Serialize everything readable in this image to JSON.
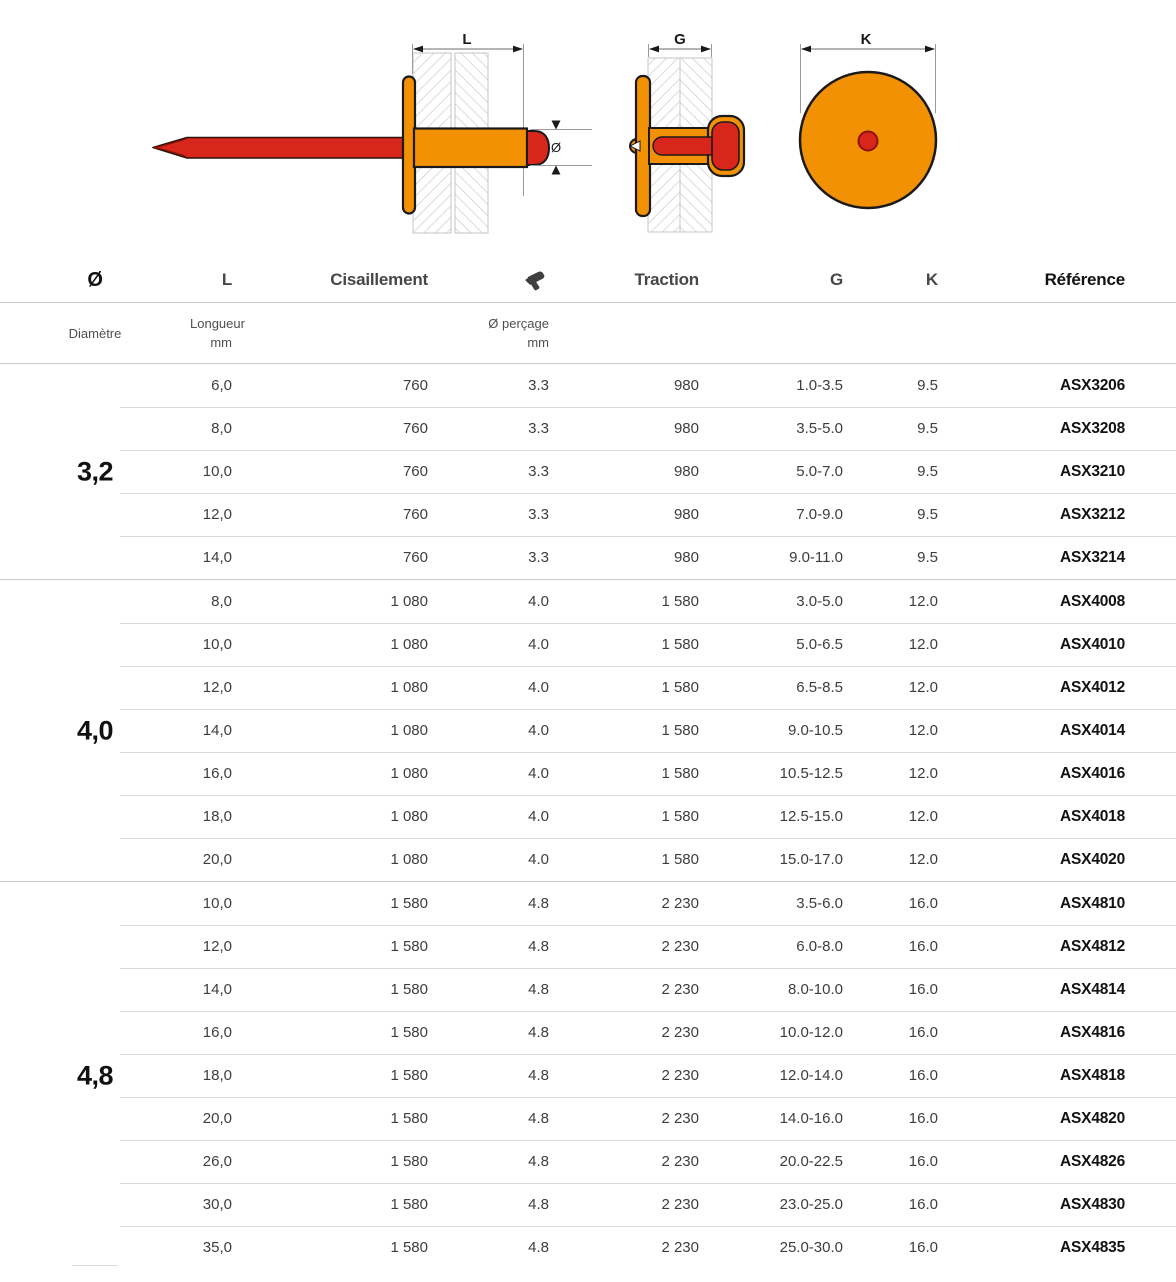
{
  "diagram": {
    "dim_labels": {
      "length": "L",
      "grip": "G",
      "head": "K",
      "diameter": "Ø"
    },
    "colors": {
      "body_orange": "#F29104",
      "mandrel_red": "#D9261C",
      "outline_black": "#1A1A1A",
      "hatch_gray": "#CCD0D4",
      "dimension_gray": "#9B9B9B"
    }
  },
  "table": {
    "headers": {
      "diameter": "Ø",
      "length": "L",
      "shear": "Cisaillement",
      "drill_icon": "drill-icon",
      "traction": "Traction",
      "grip": "G",
      "head": "K",
      "reference": "Référence"
    },
    "subheaders": {
      "diameter": "Diamètre",
      "length_line1": "Longueur",
      "length_line2": "mm",
      "drill_line1": "Ø perçage",
      "drill_line2": "mm"
    },
    "groups": [
      {
        "diameter": "3,2",
        "rows": [
          {
            "length": "6,0",
            "shear": "760",
            "drill": "3.3",
            "traction": "980",
            "grip": "1.0-3.5",
            "head": "9.5",
            "reference": "ASX3206"
          },
          {
            "length": "8,0",
            "shear": "760",
            "drill": "3.3",
            "traction": "980",
            "grip": "3.5-5.0",
            "head": "9.5",
            "reference": "ASX3208"
          },
          {
            "length": "10,0",
            "shear": "760",
            "drill": "3.3",
            "traction": "980",
            "grip": "5.0-7.0",
            "head": "9.5",
            "reference": "ASX3210"
          },
          {
            "length": "12,0",
            "shear": "760",
            "drill": "3.3",
            "traction": "980",
            "grip": "7.0-9.0",
            "head": "9.5",
            "reference": "ASX3212"
          },
          {
            "length": "14,0",
            "shear": "760",
            "drill": "3.3",
            "traction": "980",
            "grip": "9.0-11.0",
            "head": "9.5",
            "reference": "ASX3214"
          }
        ]
      },
      {
        "diameter": "4,0",
        "rows": [
          {
            "length": "8,0",
            "shear": "1 080",
            "drill": "4.0",
            "traction": "1 580",
            "grip": "3.0-5.0",
            "head": "12.0",
            "reference": "ASX4008"
          },
          {
            "length": "10,0",
            "shear": "1 080",
            "drill": "4.0",
            "traction": "1 580",
            "grip": "5.0-6.5",
            "head": "12.0",
            "reference": "ASX4010"
          },
          {
            "length": "12,0",
            "shear": "1 080",
            "drill": "4.0",
            "traction": "1 580",
            "grip": "6.5-8.5",
            "head": "12.0",
            "reference": "ASX4012"
          },
          {
            "length": "14,0",
            "shear": "1 080",
            "drill": "4.0",
            "traction": "1 580",
            "grip": "9.0-10.5",
            "head": "12.0",
            "reference": "ASX4014"
          },
          {
            "length": "16,0",
            "shear": "1 080",
            "drill": "4.0",
            "traction": "1 580",
            "grip": "10.5-12.5",
            "head": "12.0",
            "reference": "ASX4016"
          },
          {
            "length": "18,0",
            "shear": "1 080",
            "drill": "4.0",
            "traction": "1 580",
            "grip": "12.5-15.0",
            "head": "12.0",
            "reference": "ASX4018"
          },
          {
            "length": "20,0",
            "shear": "1 080",
            "drill": "4.0",
            "traction": "1 580",
            "grip": "15.0-17.0",
            "head": "12.0",
            "reference": "ASX4020"
          }
        ]
      },
      {
        "diameter": "4,8",
        "rows": [
          {
            "length": "10,0",
            "shear": "1 580",
            "drill": "4.8",
            "traction": "2 230",
            "grip": "3.5-6.0",
            "head": "16.0",
            "reference": "ASX4810"
          },
          {
            "length": "12,0",
            "shear": "1 580",
            "drill": "4.8",
            "traction": "2 230",
            "grip": "6.0-8.0",
            "head": "16.0",
            "reference": "ASX4812"
          },
          {
            "length": "14,0",
            "shear": "1 580",
            "drill": "4.8",
            "traction": "2 230",
            "grip": "8.0-10.0",
            "head": "16.0",
            "reference": "ASX4814"
          },
          {
            "length": "16,0",
            "shear": "1 580",
            "drill": "4.8",
            "traction": "2 230",
            "grip": "10.0-12.0",
            "head": "16.0",
            "reference": "ASX4816"
          },
          {
            "length": "18,0",
            "shear": "1 580",
            "drill": "4.8",
            "traction": "2 230",
            "grip": "12.0-14.0",
            "head": "16.0",
            "reference": "ASX4818"
          },
          {
            "length": "20,0",
            "shear": "1 580",
            "drill": "4.8",
            "traction": "2 230",
            "grip": "14.0-16.0",
            "head": "16.0",
            "reference": "ASX4820"
          },
          {
            "length": "26,0",
            "shear": "1 580",
            "drill": "4.8",
            "traction": "2 230",
            "grip": "20.0-22.5",
            "head": "16.0",
            "reference": "ASX4826"
          },
          {
            "length": "30,0",
            "shear": "1 580",
            "drill": "4.8",
            "traction": "2 230",
            "grip": "23.0-25.0",
            "head": "16.0",
            "reference": "ASX4830"
          },
          {
            "length": "35,0",
            "shear": "1 580",
            "drill": "4.8",
            "traction": "2 230",
            "grip": "25.0-30.0",
            "head": "16.0",
            "reference": "ASX4835"
          }
        ]
      }
    ]
  }
}
